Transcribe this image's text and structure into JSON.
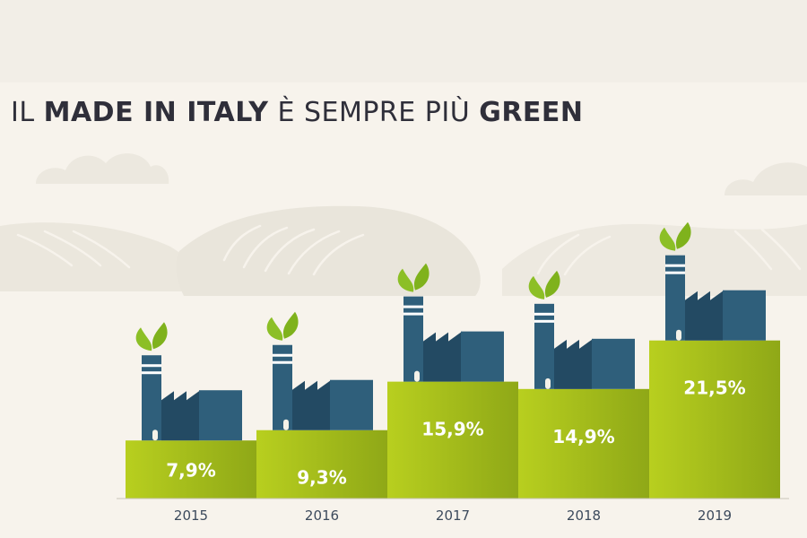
{
  "title": {
    "prefix": "IL ",
    "bold1": "MADE IN ITALY",
    "middle": " È SEMPRE PIÙ ",
    "bold2": "GREEN"
  },
  "colors": {
    "background": "#f7f3ec",
    "bar_light": "#b8cf1f",
    "bar_dark": "#8fa817",
    "factory": "#2f5f7b",
    "factory_dark": "#234a63",
    "leaf": "#8cbf26",
    "hills": "#e6e2d8"
  },
  "chart_data": {
    "type": "bar",
    "categories": [
      "2015",
      "2016",
      "2017",
      "2018",
      "2019"
    ],
    "values": [
      7.9,
      9.3,
      15.9,
      14.9,
      21.5
    ],
    "value_labels": [
      "7,9%",
      "9,3%",
      "15,9%",
      "14,9%",
      "21,5%"
    ],
    "unit": "%",
    "grid": false,
    "legend": "none",
    "decoration": "factory-with-leaves-icon"
  }
}
